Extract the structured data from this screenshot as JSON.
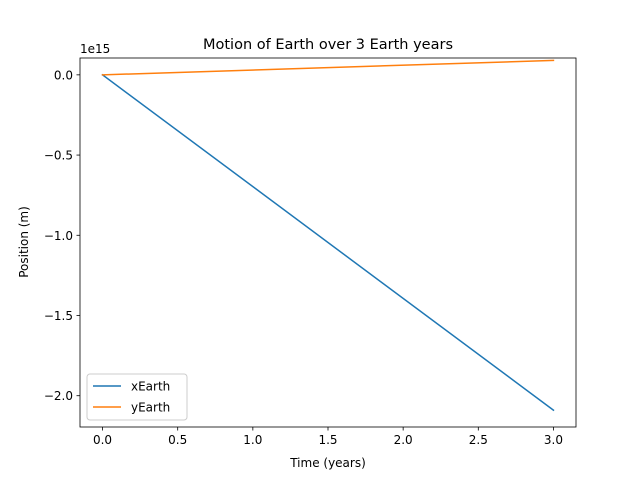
{
  "chart_data": {
    "type": "line",
    "title": "Motion of Earth over 3 Earth years",
    "xlabel": "Time (years)",
    "ylabel": "Position (m)",
    "y_offset_label": "1e15",
    "xlim": [
      -0.15,
      3.15
    ],
    "ylim": [
      -2.195,
      0.105
    ],
    "xticks": [
      0.0,
      0.5,
      1.0,
      1.5,
      2.0,
      2.5,
      3.0
    ],
    "xtick_labels": [
      "0.0",
      "0.5",
      "1.0",
      "1.5",
      "2.0",
      "2.5",
      "3.0"
    ],
    "yticks": [
      0.0,
      -0.5,
      -1.0,
      -1.5,
      -2.0
    ],
    "ytick_labels": [
      "0.0",
      "−0.5",
      "−1.0",
      "−1.5",
      "−2.0"
    ],
    "legend_position": "lower-left",
    "grid": false,
    "series": [
      {
        "name": "xEarth",
        "color": "#1f77b4",
        "x": [
          0.0,
          3.0
        ],
        "y": [
          0.0,
          -2.09
        ]
      },
      {
        "name": "yEarth",
        "color": "#ff7f0e",
        "x": [
          0.0,
          3.0
        ],
        "y": [
          0.0,
          0.09
        ]
      }
    ]
  }
}
